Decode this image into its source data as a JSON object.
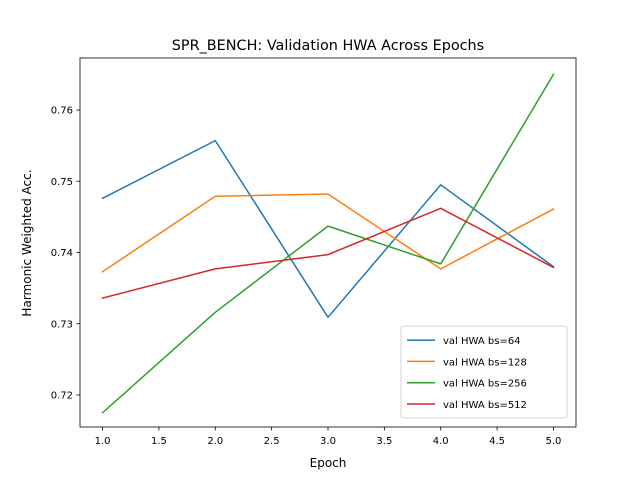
{
  "chart_data": {
    "type": "line",
    "title": "SPR_BENCH: Validation HWA Across Epochs",
    "xlabel": "Epoch",
    "ylabel": "Harmonic Weighted Acc.",
    "xlim": [
      0.8,
      5.2
    ],
    "ylim": [
      0.7155,
      0.7673
    ],
    "x_ticks": [
      1.0,
      1.5,
      2.0,
      2.5,
      3.0,
      3.5,
      4.0,
      4.5,
      5.0
    ],
    "x_tick_labels": [
      "1.0",
      "1.5",
      "2.0",
      "2.5",
      "3.0",
      "3.5",
      "4.0",
      "4.5",
      "5.0"
    ],
    "y_ticks": [
      0.72,
      0.73,
      0.74,
      0.75,
      0.76
    ],
    "y_tick_labels": [
      "0.72",
      "0.73",
      "0.74",
      "0.75",
      "0.76"
    ],
    "grid": false,
    "legend_position": "lower-right",
    "x": [
      1,
      2,
      3,
      4,
      5
    ],
    "series": [
      {
        "name": "val HWA bs=64",
        "color": "#1f77b4",
        "values": [
          0.7476,
          0.7557,
          0.7309,
          0.7495,
          0.738
        ]
      },
      {
        "name": "val HWA bs=128",
        "color": "#ff7f0e",
        "values": [
          0.7373,
          0.7479,
          0.7482,
          0.7377,
          0.7461
        ]
      },
      {
        "name": "val HWA bs=256",
        "color": "#2ca02c",
        "values": [
          0.7175,
          0.7316,
          0.7437,
          0.7384,
          0.765
        ]
      },
      {
        "name": "val HWA bs=512",
        "color": "#d62728",
        "values": [
          0.7336,
          0.7377,
          0.7397,
          0.7462,
          0.7379
        ]
      }
    ]
  }
}
